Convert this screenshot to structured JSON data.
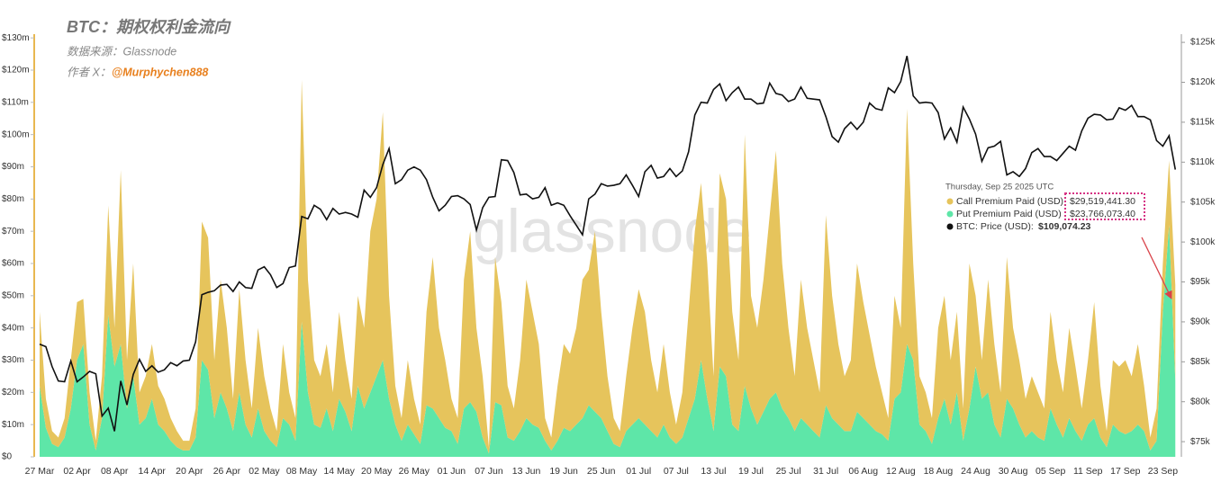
{
  "chart_data": {
    "type": "stacked-area-line",
    "title": "BTC：期权权利金流向",
    "subtitle": "数据来源：Glassnode",
    "author_prefix": "作者 X：",
    "author": "@Murphychen888",
    "watermark": "glassnode",
    "grid": false,
    "categories": [
      "27 Mar",
      null,
      null,
      null,
      null,
      null,
      "02 Apr",
      null,
      null,
      null,
      null,
      null,
      "08 Apr",
      null,
      null,
      null,
      null,
      null,
      "14 Apr",
      null,
      null,
      null,
      null,
      null,
      "20 Apr",
      null,
      null,
      null,
      null,
      null,
      "26 Apr",
      null,
      null,
      null,
      null,
      null,
      "02 May",
      null,
      null,
      null,
      null,
      null,
      "08 May",
      null,
      null,
      null,
      null,
      null,
      "14 May",
      null,
      null,
      null,
      null,
      null,
      "20 May",
      null,
      null,
      null,
      null,
      null,
      "26 May",
      null,
      null,
      null,
      null,
      null,
      "01 Jun",
      null,
      null,
      null,
      null,
      null,
      "07 Jun",
      null,
      null,
      null,
      null,
      null,
      "13 Jun",
      null,
      null,
      null,
      null,
      null,
      "19 Jun",
      null,
      null,
      null,
      null,
      null,
      "25 Jun",
      null,
      null,
      null,
      null,
      null,
      "01 Jul",
      null,
      null,
      null,
      null,
      null,
      "07 Jul",
      null,
      null,
      null,
      null,
      null,
      "13 Jul",
      null,
      null,
      null,
      null,
      null,
      "19 Jul",
      null,
      null,
      null,
      null,
      null,
      "25 Jul",
      null,
      null,
      null,
      null,
      null,
      "31 Jul",
      null,
      null,
      null,
      null,
      null,
      "06 Aug",
      null,
      null,
      null,
      null,
      null,
      "12 Aug",
      null,
      null,
      null,
      null,
      null,
      "18 Aug",
      null,
      null,
      null,
      null,
      null,
      "24 Aug",
      null,
      null,
      null,
      null,
      null,
      "30 Aug",
      null,
      null,
      null,
      null,
      null,
      "05 Sep",
      null,
      null,
      null,
      null,
      null,
      "11 Sep",
      null,
      null,
      null,
      null,
      null,
      "17 Sep",
      null,
      null,
      null,
      null,
      null,
      "23 Sep",
      null,
      null
    ],
    "series": [
      {
        "name": "Call Premium Paid (USD)",
        "color": "#e6c45c",
        "stack": true,
        "values": [
          23,
          9,
          4,
          3,
          6,
          15,
          18,
          14,
          10,
          3,
          13,
          34,
          12,
          54,
          15,
          35,
          10,
          13,
          17,
          12,
          10,
          7,
          5,
          3,
          3,
          9,
          43,
          41,
          18,
          35,
          25,
          10,
          32,
          20,
          9,
          25,
          17,
          10,
          5,
          23,
          10,
          7,
          75,
          35,
          20,
          16,
          20,
          12,
          27,
          16,
          10,
          28,
          25,
          50,
          55,
          77,
          32,
          12,
          7,
          20,
          11,
          6,
          29,
          47,
          28,
          21,
          10,
          8,
          40,
          53,
          26,
          19,
          2,
          45,
          32,
          16,
          10,
          22,
          43,
          35,
          26,
          7,
          4,
          17,
          26,
          24,
          30,
          43,
          42,
          56,
          33,
          17,
          8,
          5,
          17,
          30,
          40,
          35,
          22,
          14,
          25,
          14,
          6,
          14,
          33,
          52,
          55,
          42,
          17,
          60,
          55,
          35,
          22,
          78,
          35,
          30,
          41,
          57,
          75,
          45,
          28,
          17,
          43,
          30,
          22,
          14,
          59,
          38,
          25,
          17,
          22,
          46,
          36,
          28,
          20,
          13,
          7,
          32,
          20,
          73,
          30,
          15,
          12,
          8,
          28,
          32,
          20,
          25,
          10,
          45,
          22,
          12,
          35,
          25,
          14,
          44,
          25,
          20,
          12,
          17,
          14,
          10,
          30,
          20,
          14,
          28,
          20,
          10,
          20,
          36,
          16,
          5,
          20,
          20,
          23,
          17,
          25,
          14,
          4,
          10,
          15,
          20,
          29.52
        ]
      },
      {
        "name": "Put Premium Paid (USD)",
        "color": "#5ee6a8",
        "stack": true,
        "values": [
          22,
          9,
          4,
          3,
          6,
          15,
          30,
          35,
          10,
          2,
          12,
          44,
          28,
          35,
          15,
          25,
          10,
          12,
          18,
          10,
          8,
          5,
          3,
          2,
          2,
          6,
          30,
          27,
          12,
          20,
          15,
          8,
          20,
          10,
          6,
          15,
          8,
          5,
          3,
          12,
          10,
          5,
          42,
          20,
          10,
          9,
          15,
          8,
          18,
          14,
          8,
          22,
          15,
          20,
          25,
          30,
          18,
          10,
          5,
          10,
          7,
          4,
          16,
          15,
          12,
          9,
          8,
          4,
          15,
          17,
          14,
          6,
          1,
          17,
          16,
          6,
          5,
          8,
          12,
          10,
          9,
          5,
          2,
          5,
          9,
          8,
          10,
          12,
          16,
          14,
          12,
          8,
          4,
          3,
          8,
          10,
          12,
          10,
          8,
          6,
          10,
          6,
          4,
          6,
          12,
          18,
          30,
          18,
          8,
          28,
          25,
          10,
          8,
          22,
          15,
          10,
          14,
          18,
          20,
          15,
          12,
          8,
          12,
          10,
          8,
          6,
          16,
          12,
          10,
          8,
          8,
          14,
          12,
          10,
          8,
          7,
          5,
          18,
          20,
          35,
          30,
          10,
          8,
          4,
          12,
          18,
          10,
          20,
          5,
          15,
          28,
          18,
          20,
          10,
          6,
          18,
          15,
          10,
          6,
          8,
          6,
          5,
          15,
          10,
          6,
          12,
          8,
          5,
          10,
          12,
          6,
          3,
          10,
          8,
          7,
          8,
          10,
          8,
          2,
          5,
          45,
          72,
          23.77
        ]
      },
      {
        "name": "BTC: Price (USD):",
        "color": "#111111",
        "axis": "y2",
        "values": [
          87.2,
          86.9,
          84.4,
          82.6,
          82.5,
          85.1,
          82.5,
          83.1,
          83.8,
          83.5,
          78.2,
          79.2,
          76.3,
          82.6,
          79.6,
          83.4,
          85.3,
          83.8,
          84.5,
          83.7,
          84.0,
          84.9,
          84.5,
          85.1,
          85.2,
          87.5,
          93.4,
          93.7,
          93.9,
          94.6,
          94.7,
          93.8,
          95.0,
          94.3,
          94.2,
          96.5,
          96.9,
          95.9,
          94.3,
          94.8,
          96.8,
          97.0,
          103.2,
          102.9,
          104.6,
          104.1,
          102.8,
          104.2,
          103.5,
          103.7,
          103.5,
          103.1,
          106.5,
          105.6,
          106.8,
          109.7,
          111.7,
          107.3,
          107.8,
          109.0,
          109.4,
          109.0,
          107.8,
          105.6,
          103.9,
          104.6,
          105.7,
          105.8,
          105.4,
          104.7,
          101.5,
          104.3,
          105.6,
          105.7,
          110.3,
          110.2,
          108.7,
          105.9,
          106.0,
          105.4,
          105.6,
          106.8,
          104.6,
          104.9,
          104.6,
          103.3,
          102.1,
          100.9,
          105.4,
          106.0,
          107.3,
          107.0,
          107.1,
          107.3,
          108.4,
          107.1,
          105.7,
          108.8,
          109.6,
          108.0,
          108.2,
          109.2,
          108.2,
          108.9,
          111.3,
          115.9,
          117.5,
          117.4,
          119.1,
          119.8,
          117.7,
          118.7,
          119.4,
          117.9,
          117.9,
          117.3,
          117.4,
          119.9,
          118.6,
          118.4,
          117.6,
          117.9,
          119.4,
          118.0,
          117.9,
          117.8,
          115.7,
          113.2,
          112.5,
          114.2,
          115.0,
          114.1,
          115.0,
          117.4,
          116.7,
          116.5,
          119.3,
          118.7,
          120.1,
          123.3,
          118.3,
          117.4,
          117.5,
          117.4,
          116.2,
          112.9,
          114.3,
          112.5,
          116.9,
          115.4,
          113.5,
          110.1,
          111.8,
          112.0,
          112.6,
          108.4,
          108.8,
          108.2,
          109.2,
          111.2,
          111.7,
          110.7,
          110.7,
          110.2,
          111.1,
          112.0,
          111.5,
          113.9,
          115.5,
          116.0,
          115.9,
          115.3,
          115.4,
          116.8,
          116.5,
          117.1,
          115.7,
          115.7,
          115.3,
          112.7,
          112.0,
          113.3,
          109.07
        ]
      }
    ],
    "ylim": [
      0,
      130.6
    ],
    "yticks": [
      {
        "value": 0,
        "label": "$0"
      },
      {
        "value": 10,
        "label": "$10m"
      },
      {
        "value": 20,
        "label": "$20m"
      },
      {
        "value": 30,
        "label": "$30m"
      },
      {
        "value": 40,
        "label": "$40m"
      },
      {
        "value": 50,
        "label": "$50m"
      },
      {
        "value": 60,
        "label": "$60m"
      },
      {
        "value": 70,
        "label": "$70m"
      },
      {
        "value": 80,
        "label": "$80m"
      },
      {
        "value": 90,
        "label": "$90m"
      },
      {
        "value": 100,
        "label": "$100m"
      },
      {
        "value": 110,
        "label": "$110m"
      },
      {
        "value": 120,
        "label": "$120m"
      },
      {
        "value": 130,
        "label": "$130m"
      }
    ],
    "y2lim": [
      73.1,
      125.8
    ],
    "y2ticks": [
      {
        "value": 75,
        "label": "$75k"
      },
      {
        "value": 80,
        "label": "$80k"
      },
      {
        "value": 85,
        "label": "$85k"
      },
      {
        "value": 90,
        "label": "$90k"
      },
      {
        "value": 95,
        "label": "$95k"
      },
      {
        "value": 100,
        "label": "$100k"
      },
      {
        "value": 105,
        "label": "$105k"
      },
      {
        "value": 110,
        "label": "$110k"
      },
      {
        "value": 115,
        "label": "$115k"
      },
      {
        "value": 120,
        "label": "$120k"
      },
      {
        "value": 125,
        "label": "$125k"
      }
    ],
    "tooltip": {
      "date": "Thursday, Sep 25 2025 UTC",
      "values": [
        "$29,519,441.30",
        "$23,766,073.40",
        "$109,074.23"
      ]
    }
  }
}
